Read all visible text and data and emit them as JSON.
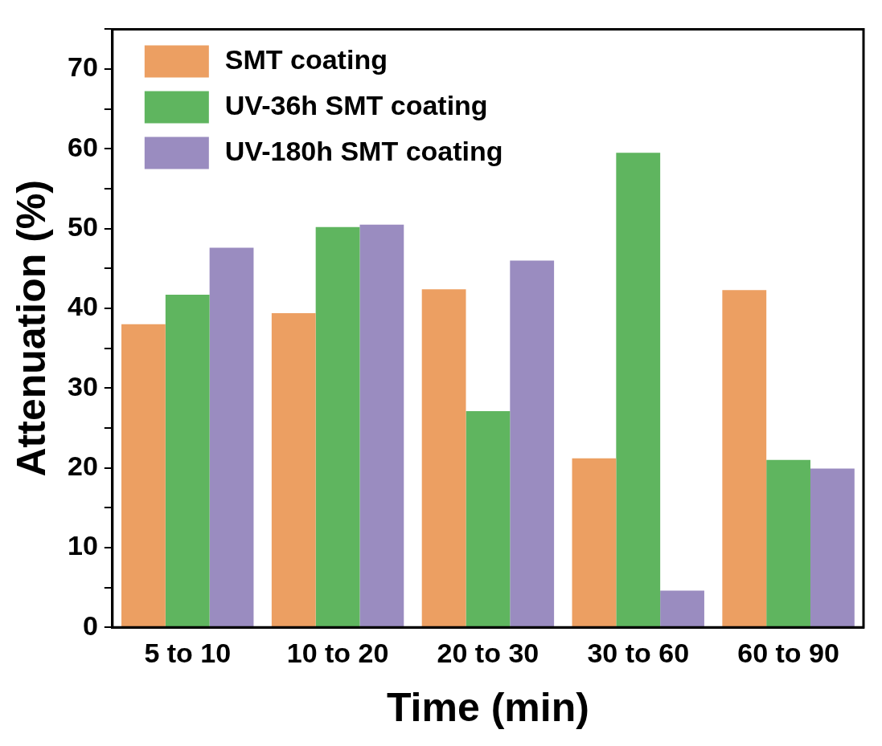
{
  "chart_data": {
    "type": "bar",
    "xlabel": "Time (min)",
    "ylabel": "Attenuation (%)",
    "categories": [
      "5 to 10",
      "10 to 20",
      "20 to 30",
      "30 to 60",
      "60 to 90"
    ],
    "series": [
      {
        "name": "SMT coating",
        "color": "#ec9f62",
        "values": [
          38.0,
          39.4,
          42.4,
          21.2,
          42.3
        ]
      },
      {
        "name": "UV-36h SMT coating",
        "color": "#5fb55f",
        "values": [
          41.7,
          50.2,
          27.1,
          59.5,
          21.0
        ]
      },
      {
        "name": "UV-180h SMT coating",
        "color": "#9a8cc0",
        "values": [
          47.6,
          50.5,
          46.0,
          4.6,
          19.9
        ]
      }
    ],
    "ylim": [
      0,
      75
    ],
    "yticks": [
      0,
      {
        "value": 5,
        "label": null
      },
      10,
      {
        "value": 15,
        "label": null
      },
      20,
      {
        "value": 25,
        "label": null
      },
      30,
      {
        "value": 35,
        "label": null
      },
      40,
      {
        "value": 45,
        "label": null
      },
      50,
      {
        "value": 55,
        "label": null
      },
      60,
      {
        "value": 65,
        "label": null
      },
      70,
      {
        "value": 75,
        "label": null
      }
    ],
    "grid": false,
    "legend": "top left"
  }
}
